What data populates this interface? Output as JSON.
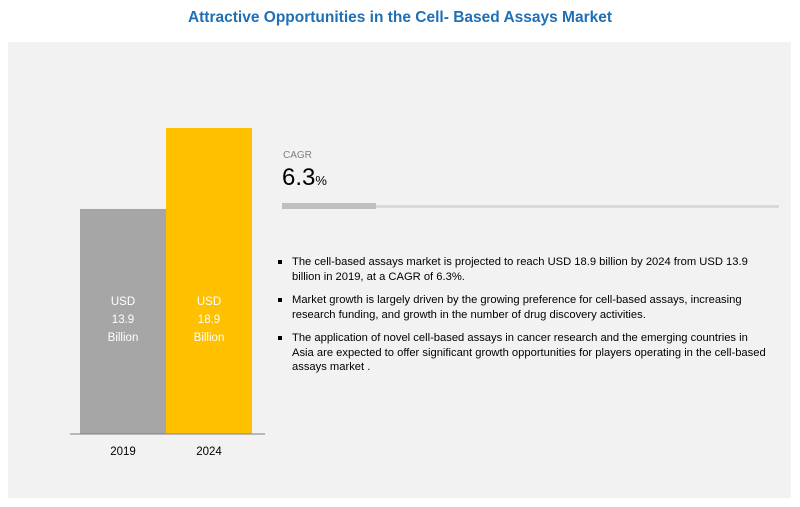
{
  "title": "Attractive Opportunities in the Cell- Based Assays Market",
  "cagr": {
    "label": "CAGR",
    "value": "6.3",
    "unit": "%",
    "progress_fraction": 0.19
  },
  "bullets": [
    "The cell-based assays market is projected to reach USD 18.9 billion by 2024 from USD 13.9 billion in 2019, at a CAGR of 6.3%.",
    "Market growth is largely driven by the growing preference for cell-based assays, increasing research funding, and growth in the number of drug discovery activities.",
    "The application of novel cell-based assays in cancer research and the emerging countries in Asia are expected to offer significant growth opportunities for players operating in the cell-based assays market ."
  ],
  "colors": {
    "title": "#1f6fb5",
    "bar_2019": "#a6a6a6",
    "bar_2024": "#ffc000",
    "panel": "#f2f2f2"
  },
  "chart_data": {
    "type": "bar",
    "categories": [
      "2019",
      "2024"
    ],
    "values": [
      13.9,
      18.9
    ],
    "value_labels": [
      [
        "USD",
        "13.9",
        "Billion"
      ],
      [
        "USD",
        "18.9",
        "Billion"
      ]
    ],
    "colors": [
      "#a6a6a6",
      "#ffc000"
    ],
    "unit": "USD Billion",
    "title": "",
    "xlabel": "",
    "ylabel": "",
    "grid": false,
    "legend": "none"
  }
}
